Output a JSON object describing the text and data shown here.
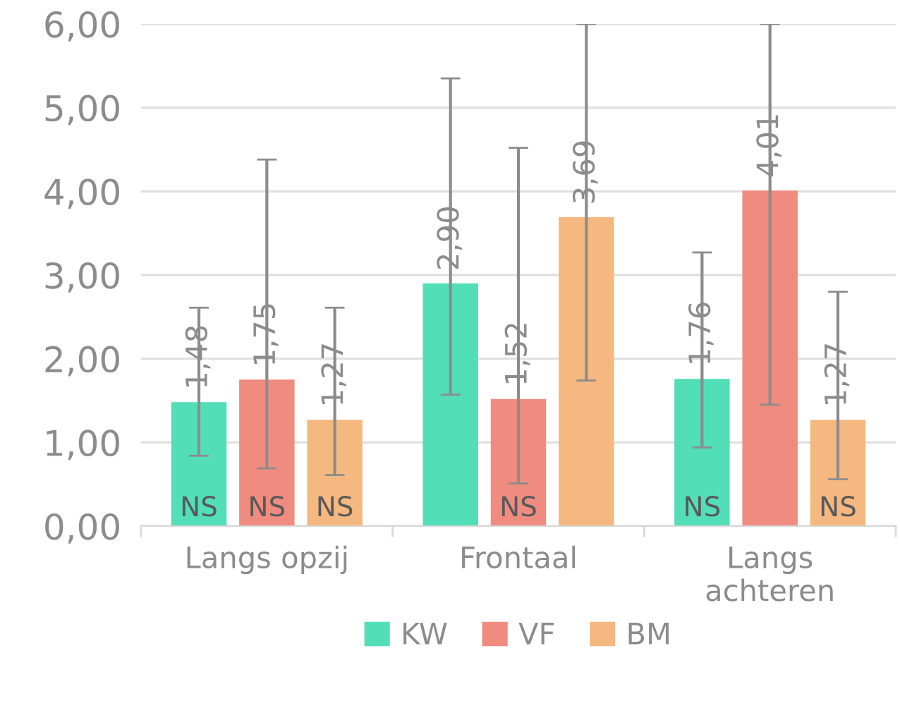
{
  "chart_data": {
    "type": "bar",
    "categories": [
      "Langs opzij",
      "Frontaal",
      "Langs\nachteren"
    ],
    "series": [
      {
        "name": "KW",
        "color": "#52dfb8",
        "values": [
          1.48,
          2.9,
          1.76
        ],
        "errors": [
          [
            0.84,
            2.61
          ],
          [
            1.57,
            5.35
          ],
          [
            0.94,
            3.27
          ]
        ],
        "value_labels": [
          "1,48",
          "2,90",
          "1,76"
        ]
      },
      {
        "name": "VF",
        "color": "#f08b80",
        "values": [
          1.75,
          1.52,
          4.01
        ],
        "errors": [
          [
            0.69,
            4.38
          ],
          [
            0.51,
            4.52
          ],
          [
            1.45,
            6.0
          ]
        ],
        "value_labels": [
          "1,75",
          "1,52",
          "4,01"
        ]
      },
      {
        "name": "BM",
        "color": "#f5b880",
        "values": [
          1.27,
          3.69,
          1.27
        ],
        "errors": [
          [
            0.61,
            2.61
          ],
          [
            1.74,
            6.0
          ],
          [
            0.56,
            2.8
          ]
        ],
        "value_labels": [
          "1,27",
          "3,69",
          "1,27"
        ]
      }
    ],
    "ylim": [
      0,
      6
    ],
    "yticks": [
      {
        "value": 0,
        "label": "0,00"
      },
      {
        "value": 1,
        "label": "1,00"
      },
      {
        "value": 2,
        "label": "2,00"
      },
      {
        "value": 3,
        "label": "3,00"
      },
      {
        "value": 4,
        "label": "4,00"
      },
      {
        "value": 5,
        "label": "5,00"
      },
      {
        "value": 6,
        "label": "6,00"
      }
    ],
    "annotations": [
      {
        "text": "NS",
        "x": "Langs opzij",
        "y": 0
      },
      {
        "text": "NS",
        "x": "Langs opzij",
        "y": 0
      },
      {
        "text": "NS",
        "x": "Langs opzij",
        "y": 0
      },
      {
        "text": "NS",
        "x": "Frontaal",
        "y": 0
      },
      {
        "text": "NS",
        "x": "Langs\nachteren",
        "y": 0
      },
      {
        "text": "NS",
        "x": "Langs\nachteren",
        "y": 0
      }
    ],
    "grid": "y",
    "legend": "bottom"
  }
}
